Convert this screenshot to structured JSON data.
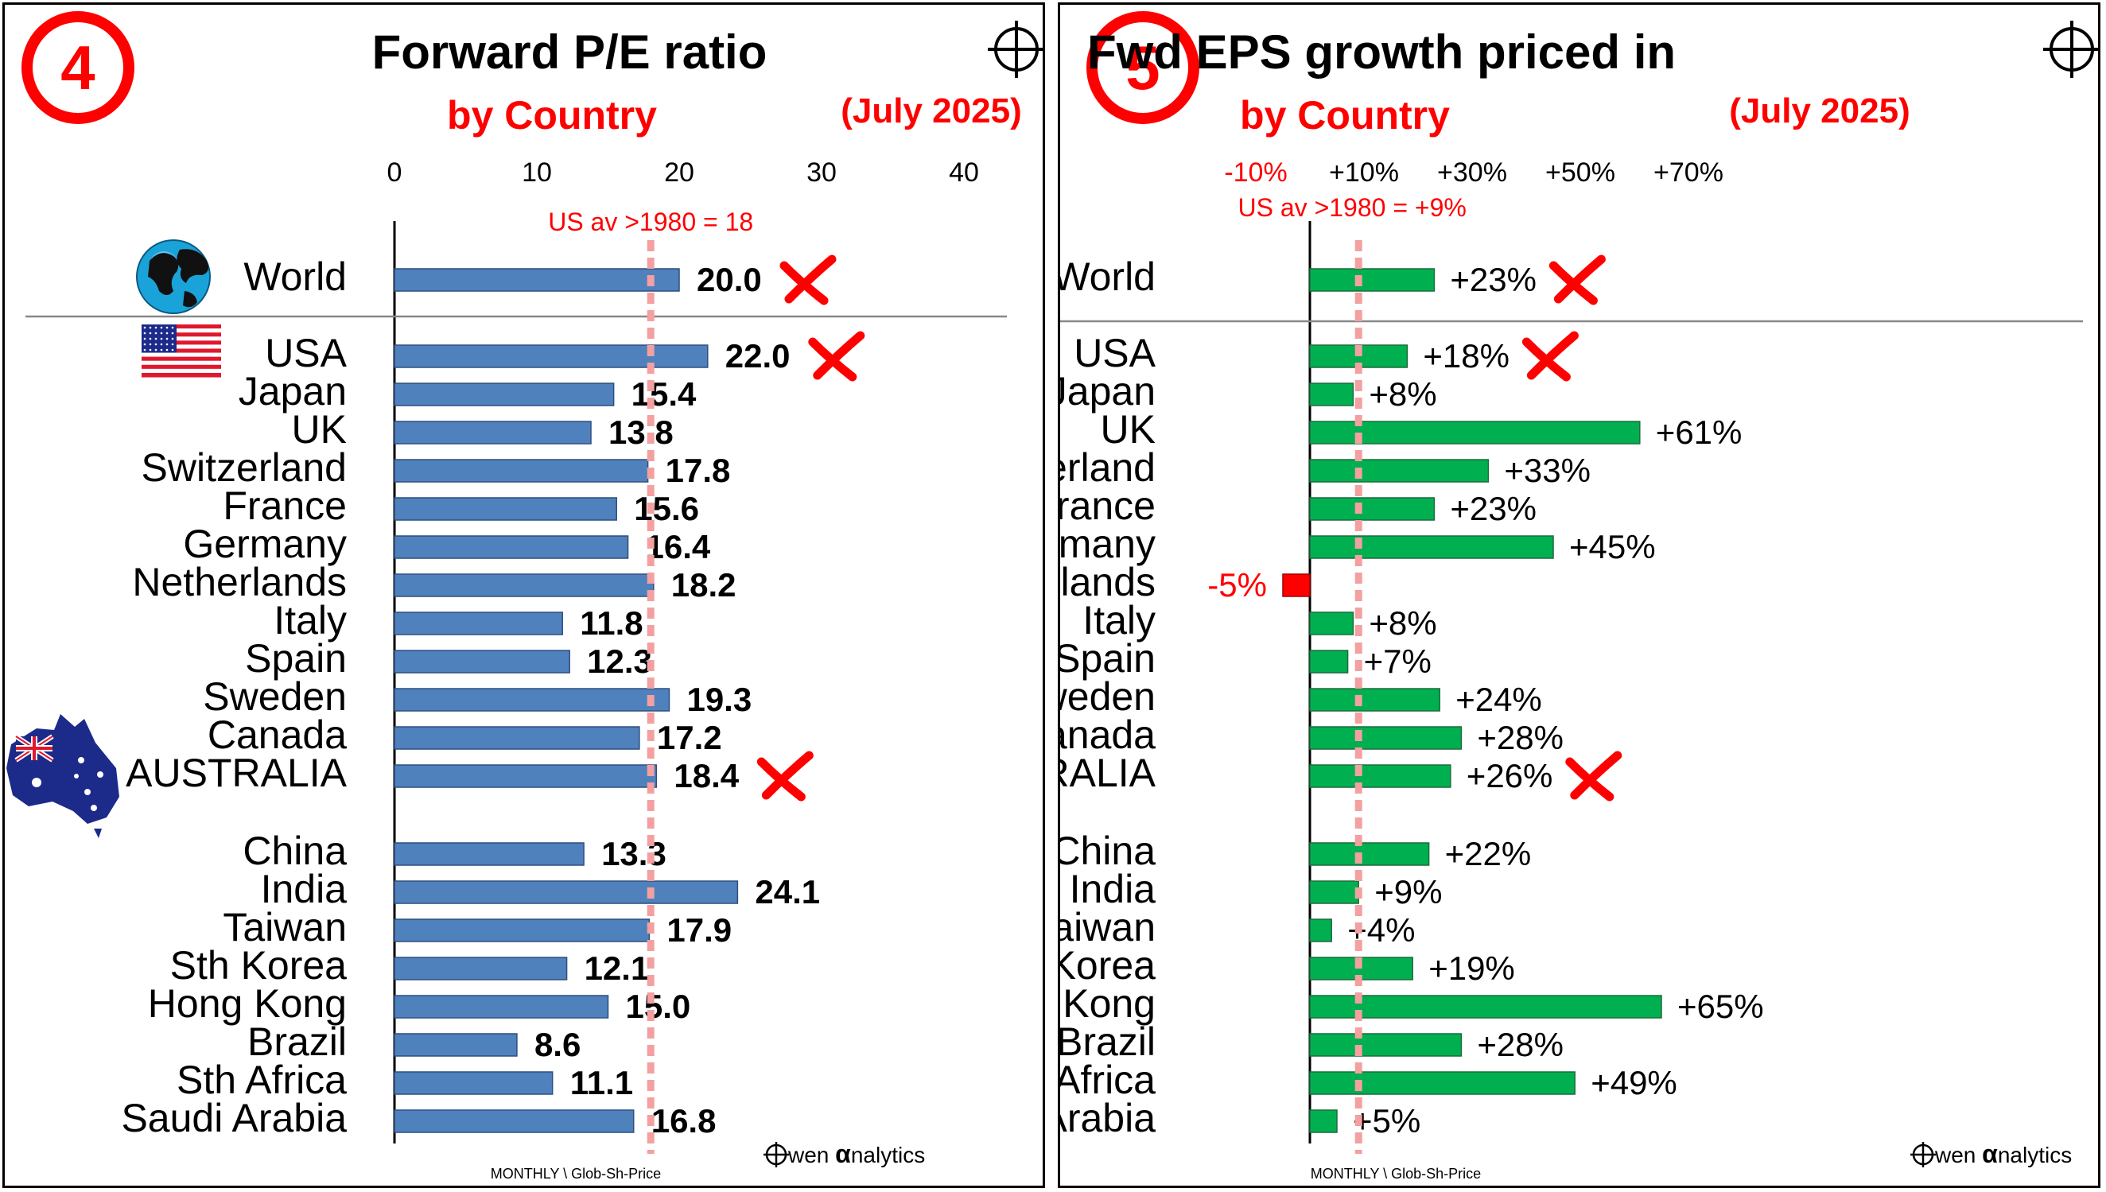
{
  "panels": [
    {
      "number": "4",
      "title": "Forward P/E ratio",
      "subtitle": "by Country",
      "date": "(July 2025)",
      "brand": "wen analytics",
      "brand_alpha": "α",
      "footer": "MONTHLY \\ Glob-Sh-Price",
      "avg_label": "US av >1980 = 18",
      "colors": {
        "bar": "#4f81bd",
        "bar_stroke": "#2f4f7f",
        "avg_line": "#f4a0a0",
        "accent": "#ff0000"
      },
      "chart_data": {
        "type": "bar",
        "orientation": "horizontal",
        "title": "Forward P/E ratio",
        "subtitle": "by Country",
        "xlim": [
          0,
          40
        ],
        "xticks": [
          "0",
          "10",
          "20",
          "30",
          "40"
        ],
        "reference_line": {
          "value": 18,
          "label": "US av >1980 = 18"
        },
        "categories": [
          "World",
          "USA",
          "Japan",
          "UK",
          "Switzerland",
          "France",
          "Germany",
          "Netherlands",
          "Italy",
          "Spain",
          "Sweden",
          "Canada",
          "AUSTRALIA",
          "China",
          "India",
          "Taiwan",
          "Sth Korea",
          "Hong Kong",
          "Brazil",
          "Sth Africa",
          "Saudi Arabia"
        ],
        "values": [
          20.0,
          22.0,
          15.4,
          13.8,
          17.8,
          15.6,
          16.4,
          18.2,
          11.8,
          12.3,
          19.3,
          17.2,
          18.4,
          13.3,
          24.1,
          17.9,
          12.1,
          15.0,
          8.6,
          11.1,
          16.8
        ],
        "data_labels": [
          "20.0",
          "22.0",
          "15.4",
          "13.8",
          "17.8",
          "15.6",
          "16.4",
          "18.2",
          "11.8",
          "12.3",
          "19.3",
          "17.2",
          "18.4",
          "13.3",
          "24.1",
          "17.9",
          "12.1",
          "15.0",
          "8.6",
          "11.1",
          "16.8"
        ],
        "flagged": [
          "World",
          "USA",
          "AUSTRALIA"
        ]
      }
    },
    {
      "number": "5",
      "title": "Fwd EPS growth priced in",
      "subtitle": "by Country",
      "date": "(July 2025)",
      "brand": "wen analytics",
      "brand_alpha": "α",
      "footer": "MONTHLY \\ Glob-Sh-Price",
      "avg_label": "US av >1980 = +9%",
      "colors": {
        "bar": "#00b050",
        "bar_stroke": "#1d6b3a",
        "neg_bar": "#ff0000",
        "avg_line": "#f4a0a0",
        "accent": "#ff0000"
      },
      "chart_data": {
        "type": "bar",
        "orientation": "horizontal",
        "title": "Fwd EPS growth priced in",
        "subtitle": "by Country",
        "xlim": [
          -10,
          70
        ],
        "xticks": [
          "-10%",
          "+10%",
          "+30%",
          "+50%",
          "+70%"
        ],
        "reference_line": {
          "value": 9,
          "label": "US av >1980 = +9%"
        },
        "categories": [
          "World",
          "USA",
          "Japan",
          "UK",
          "Switzerland",
          "France",
          "Germany",
          "Netherlands",
          "Italy",
          "Spain",
          "Sweden",
          "Canada",
          "AUSTRALIA",
          "China",
          "India",
          "Taiwan",
          "Sth Korea",
          "Hong Kong",
          "Brazil",
          "Sth Africa",
          "Saudi Arabia"
        ],
        "values": [
          23,
          18,
          8,
          61,
          33,
          23,
          45,
          -5,
          8,
          7,
          24,
          28,
          26,
          22,
          9,
          4,
          19,
          65,
          28,
          49,
          5
        ],
        "data_labels": [
          "+23%",
          "+18%",
          "+8%",
          "+61%",
          "+33%",
          "+23%",
          "+45%",
          "-5%",
          "+8%",
          "+7%",
          "+24%",
          "+28%",
          "+26%",
          "+22%",
          "+9%",
          "+4%",
          "+19%",
          "+65%",
          "+28%",
          "+49%",
          "+5%"
        ],
        "flagged": [
          "World",
          "USA",
          "AUSTRALIA"
        ]
      }
    }
  ]
}
